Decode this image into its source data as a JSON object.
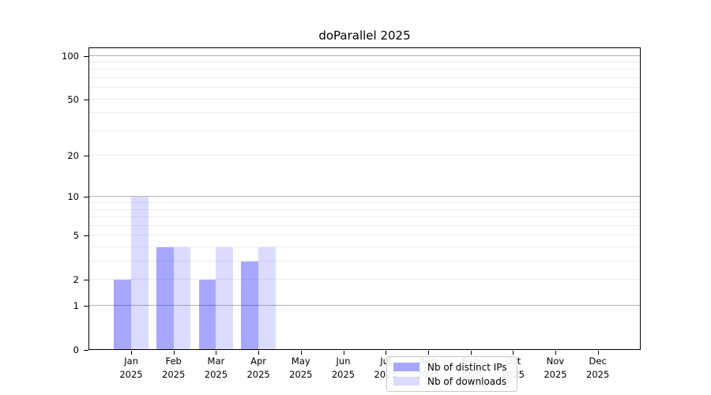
{
  "chart_data": {
    "type": "bar",
    "title": "doParallel 2025",
    "categories": [
      "Jan",
      "Feb",
      "Mar",
      "Apr",
      "May",
      "Jun",
      "Jul",
      "Aug",
      "Sep",
      "Oct",
      "Nov",
      "Dec"
    ],
    "year_label": "2025",
    "series": [
      {
        "name": "Nb of distinct IPs",
        "color": "rgba(0,0,255,0.345)",
        "values": [
          2,
          4,
          2,
          3,
          0,
          0,
          0,
          0,
          0,
          0,
          0,
          0
        ]
      },
      {
        "name": "Nb of downloads",
        "color": "rgba(0,0,255,0.14)",
        "values": [
          10,
          4,
          4,
          4,
          0,
          0,
          0,
          0,
          0,
          0,
          0,
          0
        ]
      }
    ],
    "yscale": "log1p",
    "ylim": [
      0,
      114
    ],
    "yticks": [
      0,
      1,
      2,
      5,
      10,
      20,
      50,
      100
    ],
    "major_gridlines": [
      1,
      10,
      100
    ],
    "minor_gridlines": [
      2,
      3,
      4,
      5,
      6,
      7,
      8,
      9,
      20,
      30,
      40,
      50,
      60,
      70,
      80,
      90
    ],
    "grid": true,
    "legend_position": "lower center"
  },
  "colors": {
    "major_grid": "#b5b5b5",
    "minor_grid": "#ededed",
    "axis": "#000000",
    "background": "#ffffff"
  }
}
